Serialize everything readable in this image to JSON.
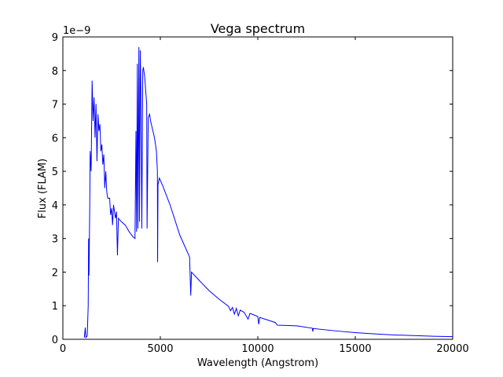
{
  "chart_data": {
    "type": "line",
    "title": "Vega spectrum",
    "x_label": "Wavelength (Angstrom)",
    "y_label": "Flux (FLAM)",
    "y_offset_label": "1e−9",
    "xlim": [
      0,
      20000
    ],
    "ylim": [
      0,
      9
    ],
    "xticks": [
      0,
      5000,
      10000,
      15000,
      20000
    ],
    "yticks": [
      0,
      1,
      2,
      3,
      4,
      5,
      6,
      7,
      8,
      9
    ],
    "series": [
      {
        "color": "#0000ff",
        "x": [
          1100,
          1150,
          1180,
          1250,
          1300,
          1320,
          1340,
          1380,
          1400,
          1450,
          1500,
          1550,
          1600,
          1650,
          1700,
          1750,
          1800,
          1850,
          1900,
          1950,
          2000,
          2050,
          2100,
          2150,
          2200,
          2250,
          2300,
          2400,
          2450,
          2500,
          2550,
          2600,
          2700,
          2750,
          2800,
          2850,
          3000,
          3200,
          3400,
          3600,
          3700,
          3750,
          3780,
          3820,
          3850,
          3900,
          3930,
          3970,
          4000,
          4050,
          4100,
          4130,
          4200,
          4300,
          4320,
          4380,
          4450,
          4500,
          4700,
          4800,
          4850,
          4860,
          4880,
          4950,
          5100,
          5500,
          6000,
          6500,
          6560,
          6600,
          7000,
          7500,
          8000,
          8500,
          8600,
          8700,
          8800,
          8900,
          9000,
          9100,
          9300,
          9500,
          9600,
          10000,
          10050,
          10100,
          10900,
          11000,
          12000,
          12800,
          12820,
          12850,
          14000,
          15000,
          16000,
          17000,
          18000,
          19000,
          20000
        ],
        "values": [
          0.05,
          0.35,
          0.05,
          0.1,
          1.0,
          3.0,
          1.9,
          4.0,
          5.6,
          5.0,
          7.7,
          6.5,
          7.2,
          6.0,
          7.0,
          5.3,
          6.7,
          6.2,
          6.4,
          5.6,
          5.8,
          5.2,
          5.5,
          4.5,
          5.0,
          4.4,
          4.2,
          4.2,
          3.7,
          3.9,
          3.4,
          4.0,
          3.6,
          3.8,
          2.5,
          3.6,
          3.5,
          3.4,
          3.2,
          3.05,
          3.0,
          6.2,
          3.2,
          8.2,
          3.3,
          8.7,
          3.5,
          8.6,
          7.5,
          3.3,
          8.0,
          8.1,
          7.8,
          7.0,
          3.3,
          6.6,
          6.7,
          6.5,
          6.0,
          5.6,
          5.0,
          2.3,
          4.6,
          4.8,
          4.6,
          4.0,
          3.1,
          2.45,
          1.3,
          2.0,
          1.75,
          1.45,
          1.2,
          0.98,
          0.85,
          0.95,
          0.75,
          0.92,
          0.7,
          0.87,
          0.8,
          0.6,
          0.77,
          0.68,
          0.45,
          0.65,
          0.5,
          0.42,
          0.4,
          0.33,
          0.23,
          0.32,
          0.25,
          0.2,
          0.16,
          0.13,
          0.11,
          0.09,
          0.08
        ]
      }
    ]
  }
}
